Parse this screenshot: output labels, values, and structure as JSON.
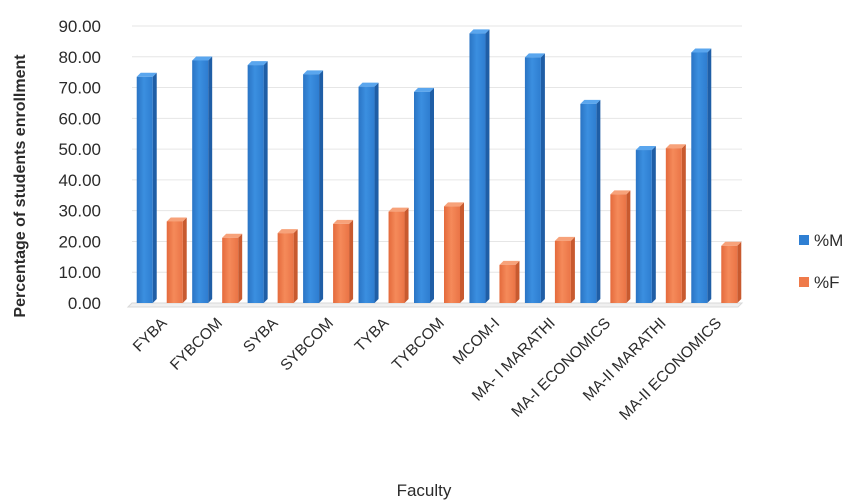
{
  "chart_data": {
    "type": "bar",
    "title": "",
    "xlabel": "Faculty",
    "ylabel": "Percentage of students enrollment",
    "ylim": [
      0,
      90
    ],
    "y_ticks": [
      "0.00",
      "10.00",
      "20.00",
      "30.00",
      "40.00",
      "50.00",
      "60.00",
      "70.00",
      "80.00",
      "90.00"
    ],
    "categories": [
      "FYBA",
      "FYBCOM",
      "SYBA",
      "SYBCOM",
      "TYBA",
      "TYBCOM",
      "MCOM-I",
      "MA- I MARATHI",
      "MA-I ECONOMICS",
      "MA-II MARATHI",
      "MA-II ECONOMICS"
    ],
    "series": [
      {
        "name": "%M",
        "color": "#2f7fd3",
        "values": [
          73.5,
          78.8,
          77.3,
          74.3,
          70.3,
          68.6,
          87.6,
          79.8,
          64.7,
          49.7,
          81.4
        ]
      },
      {
        "name": "%F",
        "color": "#ef7a4a",
        "values": [
          26.5,
          21.2,
          22.7,
          25.7,
          29.7,
          31.4,
          12.4,
          20.2,
          35.3,
          50.3,
          18.6
        ]
      }
    ],
    "grid": true,
    "legend_position": "right"
  }
}
